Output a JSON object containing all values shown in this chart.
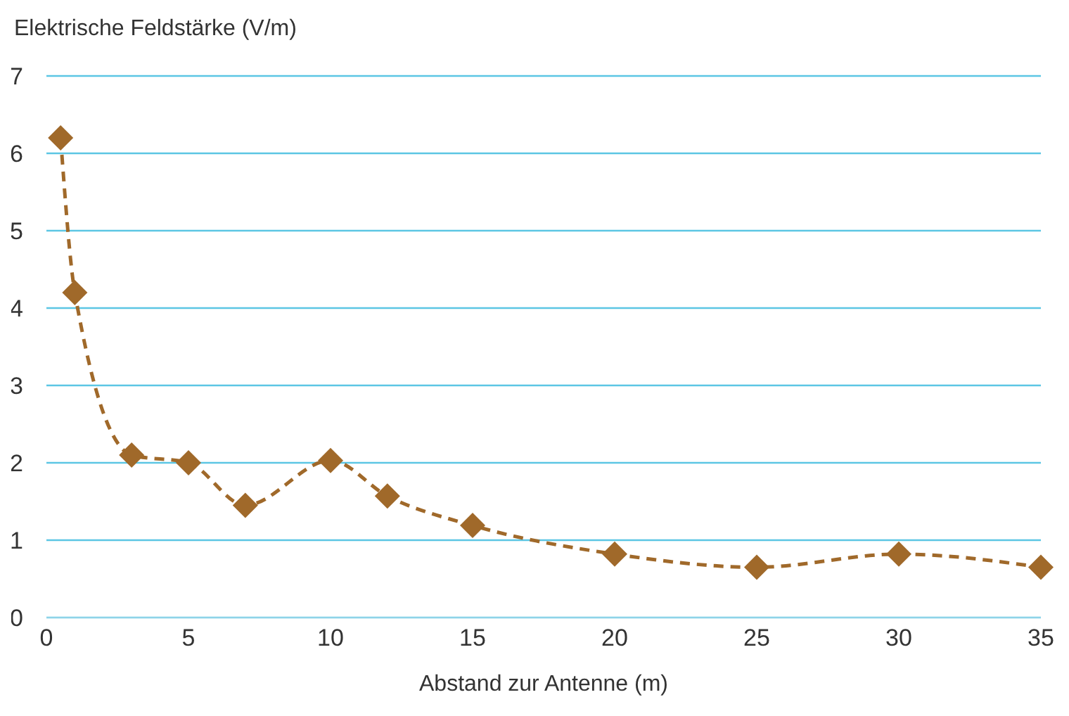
{
  "chart_data": {
    "type": "line",
    "xlabel": "Abstand zur Antenne (m)",
    "ylabel": "Elektrische Feldstärke (V/m)",
    "x": [
      0.5,
      1,
      3,
      5,
      7,
      10,
      12,
      15,
      20,
      25,
      30,
      35
    ],
    "series": [
      {
        "color": "#a0692a",
        "values": [
          6.2,
          4.2,
          2.1,
          2.0,
          1.45,
          2.03,
          1.57,
          1.19,
          0.82,
          0.65,
          0.82,
          0.65
        ]
      }
    ],
    "xlim": [
      0,
      35
    ],
    "xticks": [
      0,
      5,
      10,
      15,
      20,
      25,
      30,
      35
    ],
    "ylim": [
      0,
      7
    ],
    "yticks": [
      0,
      1,
      2,
      3,
      4,
      5,
      6,
      7
    ],
    "grid": "y",
    "marker": "diamond",
    "line_style": "dashed"
  }
}
